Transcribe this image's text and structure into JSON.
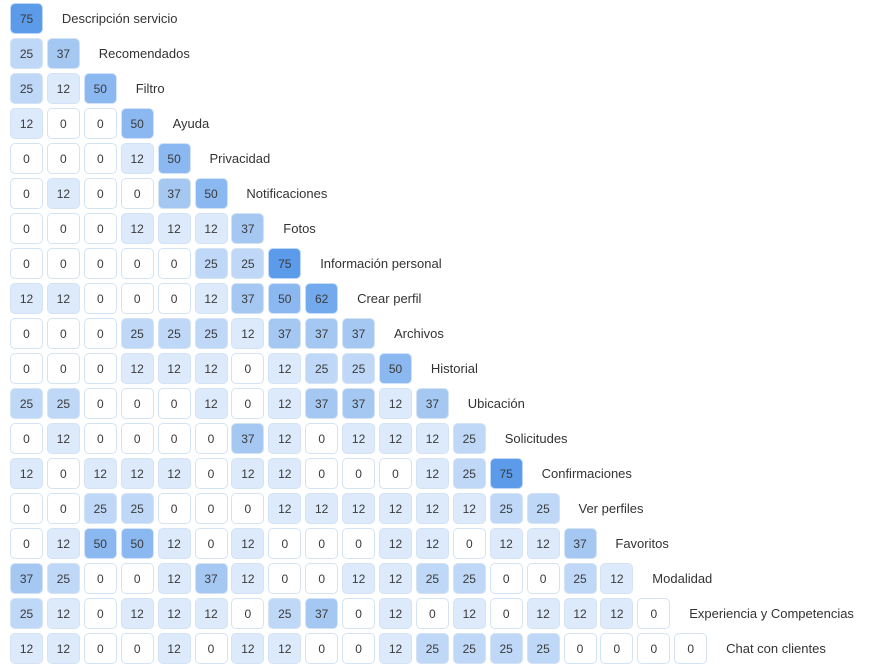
{
  "chart_data": {
    "type": "heatmap",
    "layout": "lower-triangular similarity matrix with row labels after the diagonal",
    "colorscale": [
      "#ffffff",
      "#5b9bea"
    ],
    "value_range": [
      0,
      75
    ],
    "labels": [
      "Descripción servicio",
      "Recomendados",
      "Filtro",
      "Ayuda",
      "Privacidad",
      "Notificaciones",
      "Fotos",
      "Información personal",
      "Crear perfil",
      "Archivos",
      "Historial",
      "Ubicación",
      "Solicitudes",
      "Confirmaciones",
      "Ver perfiles",
      "Favoritos",
      "Modalidad",
      "Experiencia y Competencias",
      "Chat con clientes"
    ],
    "rows": [
      [
        75
      ],
      [
        25,
        37
      ],
      [
        25,
        12,
        50
      ],
      [
        12,
        0,
        0,
        50
      ],
      [
        0,
        0,
        0,
        12,
        50
      ],
      [
        0,
        12,
        0,
        0,
        37,
        50
      ],
      [
        0,
        0,
        0,
        12,
        12,
        12,
        37
      ],
      [
        0,
        0,
        0,
        0,
        0,
        25,
        25,
        75
      ],
      [
        12,
        12,
        0,
        0,
        0,
        12,
        37,
        50,
        62
      ],
      [
        0,
        0,
        0,
        25,
        25,
        25,
        12,
        37,
        37,
        37
      ],
      [
        0,
        0,
        0,
        12,
        12,
        12,
        0,
        12,
        25,
        25,
        50
      ],
      [
        25,
        25,
        0,
        0,
        0,
        12,
        0,
        12,
        37,
        37,
        12,
        37
      ],
      [
        0,
        12,
        0,
        0,
        0,
        0,
        37,
        12,
        0,
        12,
        12,
        12,
        25
      ],
      [
        12,
        0,
        12,
        12,
        12,
        0,
        12,
        12,
        0,
        0,
        0,
        12,
        25,
        75
      ],
      [
        0,
        0,
        25,
        25,
        0,
        0,
        0,
        12,
        12,
        12,
        12,
        12,
        12,
        25,
        25
      ],
      [
        0,
        12,
        50,
        50,
        12,
        0,
        12,
        0,
        0,
        0,
        12,
        12,
        0,
        12,
        12,
        37
      ],
      [
        37,
        25,
        0,
        0,
        12,
        37,
        12,
        0,
        0,
        12,
        12,
        25,
        25,
        0,
        0,
        25,
        12
      ],
      [
        25,
        12,
        0,
        12,
        12,
        12,
        0,
        25,
        37,
        0,
        12,
        0,
        12,
        0,
        12,
        12,
        12,
        0
      ],
      [
        12,
        12,
        0,
        0,
        12,
        0,
        12,
        12,
        0,
        0,
        12,
        25,
        25,
        25,
        25,
        0,
        0,
        0,
        0
      ]
    ]
  }
}
